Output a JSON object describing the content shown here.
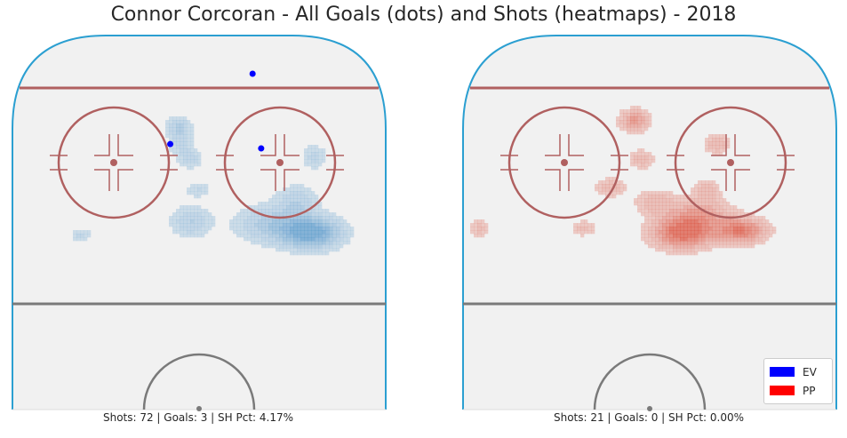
{
  "title": "Connor Corcoran - All Goals (dots) and Shots (heatmaps) - 2018",
  "colors": {
    "ev": "#0000ff",
    "pp": "#ff0000",
    "ev_heat": "#4a90c8",
    "pp_heat": "#d9412b",
    "ice": "#f1f1f1",
    "boards": "#2b9fd1",
    "red_line": "#b06060",
    "dark_line": "#7a7a7a"
  },
  "chart_data": [
    {
      "type": "heatmap",
      "panel": "EV",
      "caption": "Shots: 72 | Goals: 3 | SH Pct: 4.17%",
      "heatmap": "blue",
      "goals": [
        {
          "x": 0.7,
          "y": 0.1
        },
        {
          "x": 0.46,
          "y": 0.26
        },
        {
          "x": 0.725,
          "y": 0.28
        }
      ],
      "shot_clusters": [
        {
          "x": 0.87,
          "y": 0.67,
          "sx": 0.06,
          "sy": 0.05,
          "w": 1.0
        },
        {
          "x": 0.75,
          "y": 0.63,
          "sx": 0.07,
          "sy": 0.06,
          "w": 0.45
        },
        {
          "x": 0.83,
          "y": 0.52,
          "sx": 0.04,
          "sy": 0.05,
          "w": 0.35
        },
        {
          "x": 0.52,
          "y": 0.62,
          "sx": 0.04,
          "sy": 0.05,
          "w": 0.4
        },
        {
          "x": 0.49,
          "y": 0.24,
          "sx": 0.025,
          "sy": 0.05,
          "w": 0.35
        },
        {
          "x": 0.52,
          "y": 0.33,
          "sx": 0.025,
          "sy": 0.03,
          "w": 0.3
        },
        {
          "x": 0.54,
          "y": 0.47,
          "sx": 0.025,
          "sy": 0.025,
          "w": 0.25
        },
        {
          "x": 0.88,
          "y": 0.32,
          "sx": 0.025,
          "sy": 0.04,
          "w": 0.3
        },
        {
          "x": 0.2,
          "y": 0.68,
          "sx": 0.02,
          "sy": 0.02,
          "w": 0.3
        },
        {
          "x": 0.48,
          "y": 0.17,
          "sx": 0.025,
          "sy": 0.03,
          "w": 0.3
        }
      ]
    },
    {
      "type": "heatmap",
      "panel": "PP",
      "caption": "Shots: 21 | Goals: 0 | SH Pct: 0.00%",
      "heatmap": "red",
      "goals": [],
      "shot_clusters": [
        {
          "x": 0.64,
          "y": 0.67,
          "sx": 0.06,
          "sy": 0.05,
          "w": 1.0
        },
        {
          "x": 0.81,
          "y": 0.66,
          "sx": 0.05,
          "sy": 0.04,
          "w": 0.85
        },
        {
          "x": 0.69,
          "y": 0.58,
          "sx": 0.06,
          "sy": 0.05,
          "w": 0.5
        },
        {
          "x": 0.56,
          "y": 0.53,
          "sx": 0.04,
          "sy": 0.04,
          "w": 0.35
        },
        {
          "x": 0.43,
          "y": 0.46,
          "sx": 0.03,
          "sy": 0.03,
          "w": 0.35
        },
        {
          "x": 0.71,
          "y": 0.47,
          "sx": 0.025,
          "sy": 0.03,
          "w": 0.35
        },
        {
          "x": 0.5,
          "y": 0.15,
          "sx": 0.03,
          "sy": 0.035,
          "w": 0.6
        },
        {
          "x": 0.52,
          "y": 0.33,
          "sx": 0.025,
          "sy": 0.03,
          "w": 0.35
        },
        {
          "x": 0.74,
          "y": 0.26,
          "sx": 0.025,
          "sy": 0.03,
          "w": 0.4
        },
        {
          "x": 0.35,
          "y": 0.65,
          "sx": 0.025,
          "sy": 0.025,
          "w": 0.3
        },
        {
          "x": 0.05,
          "y": 0.65,
          "sx": 0.02,
          "sy": 0.03,
          "w": 0.3
        }
      ]
    }
  ],
  "legend": {
    "items": [
      {
        "label": "EV",
        "color": "#0000ff"
      },
      {
        "label": "PP",
        "color": "#ff0000"
      }
    ]
  }
}
